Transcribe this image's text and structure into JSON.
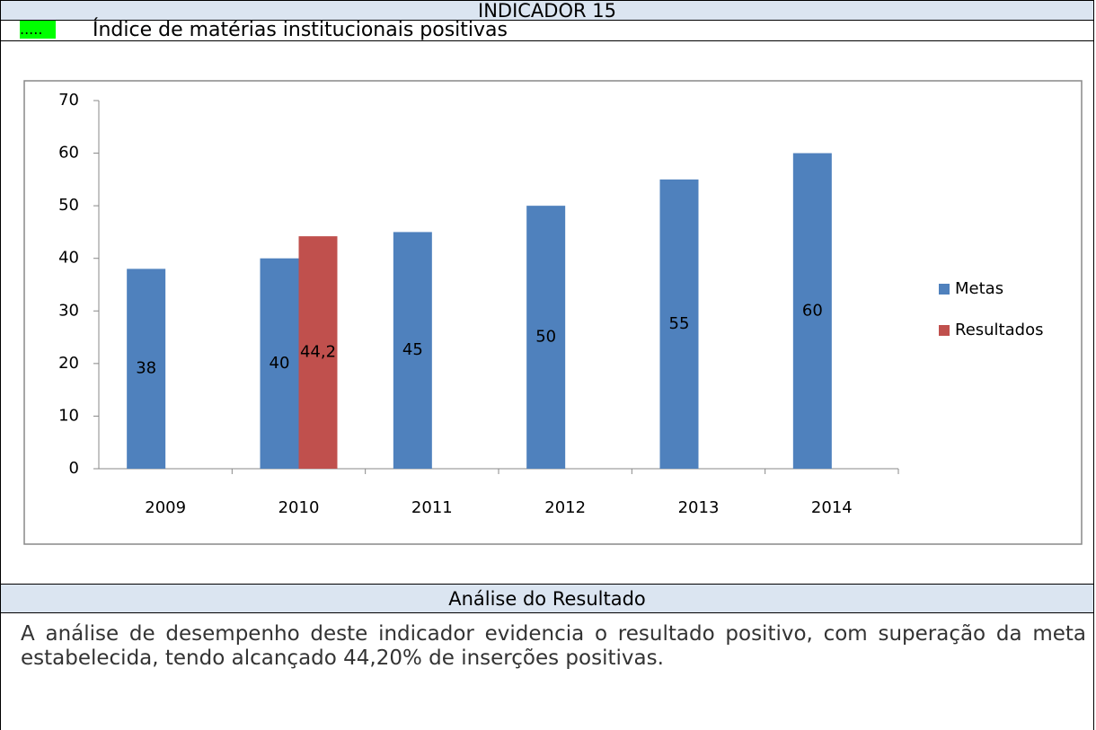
{
  "header": {
    "title": "INDICADOR 15",
    "marker": ".....",
    "subtitle": "Índice de matérias institucionais positivas"
  },
  "chart_data": {
    "type": "bar",
    "categories": [
      "2009",
      "2010",
      "2011",
      "2012",
      "2013",
      "2014"
    ],
    "series": [
      {
        "name": "Metas",
        "color": "#4f81bd",
        "values": [
          38,
          40,
          45,
          50,
          55,
          60
        ]
      },
      {
        "name": "Resultados",
        "color": "#c0504d",
        "values": [
          null,
          44.2,
          null,
          null,
          null,
          null
        ],
        "value_labels": [
          null,
          "44,2",
          null,
          null,
          null,
          null
        ]
      }
    ],
    "ylim": [
      0,
      70
    ],
    "yticks": [
      0,
      10,
      20,
      30,
      40,
      50,
      60,
      70
    ],
    "legend": "right"
  },
  "section_title": "Análise do Resultado",
  "paragraph": "A análise de desempenho deste indicador evidencia o resultado positivo, com superação da meta estabelecida, tendo alcançado 44,20% de inserções positivas."
}
